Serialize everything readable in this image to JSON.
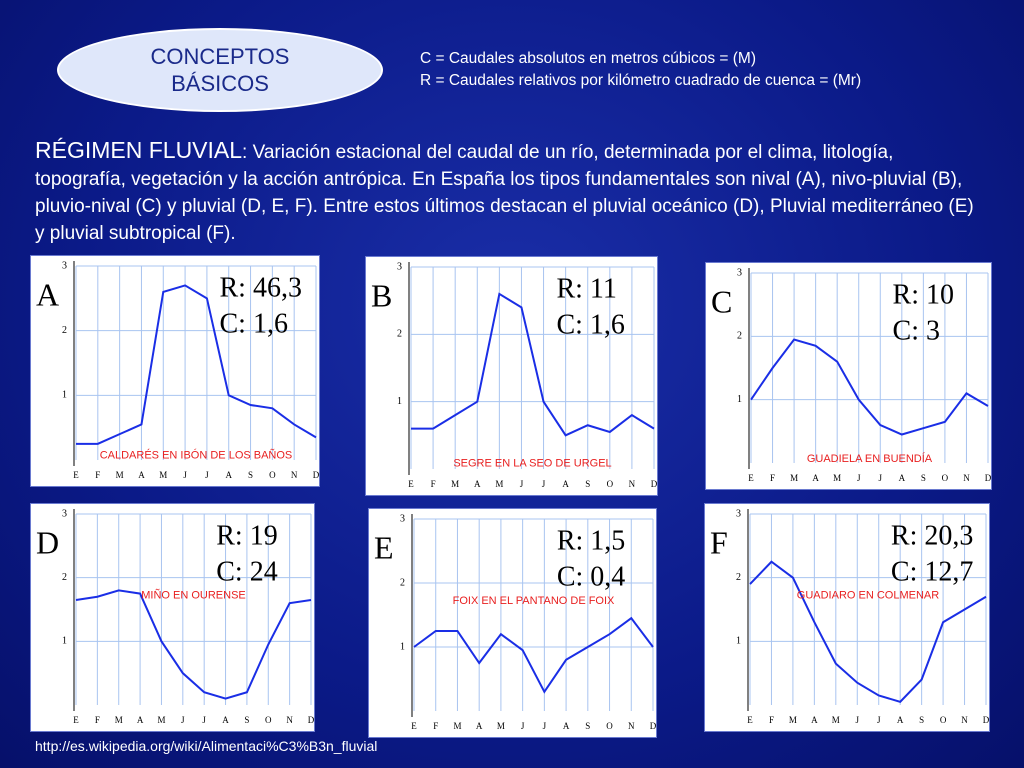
{
  "slide": {
    "title": [
      "CONCEPTOS",
      "BÁSICOS"
    ],
    "definitions": [
      "C = Caudales absolutos en metros cúbicos  = (M)",
      "R = Caudales relativos por kilómetro cuadrado de cuenca  = (Mr)"
    ],
    "term": "RÉGIMEN FLUVIAL",
    "text": ": Variación estacional del caudal de un río, determinada por el clima, litología, topografía, vegetación y la acción antrópica. En España los tipos fundamentales son nival (A), nivo-pluvial (B), pluvio-nival (C) y pluvial (D, E, F). Entre estos últimos destacan el pluvial oceánico (D), Pluvial mediterráneo (E) y pluvial subtropical (F).",
    "url": "http://es.wikipedia.org/wiki/Alimentaci%C3%B3n_fluvial"
  },
  "chart_data": [
    {
      "type": "line",
      "label": "A",
      "annotations": [
        "R: 46,3",
        "C: 1,6"
      ],
      "subtitle": "CALDARÉS EN IBÓN DE LOS BAÑOS",
      "categories": [
        "E",
        "F",
        "M",
        "A",
        "M",
        "J",
        "J",
        "A",
        "S",
        "O",
        "N",
        "D"
      ],
      "values": [
        0.25,
        0.25,
        0.4,
        0.55,
        2.6,
        2.7,
        2.5,
        1.0,
        0.85,
        0.8,
        0.55,
        0.35
      ],
      "ylim": [
        0,
        3
      ],
      "yticks": [
        1,
        2,
        3
      ],
      "color": "#1a2ee6",
      "grid": true
    },
    {
      "type": "line",
      "label": "B",
      "annotations": [
        "R: 11",
        "C: 1,6"
      ],
      "subtitle": "SEGRE EN LA SEO DE URGEL",
      "categories": [
        "E",
        "F",
        "M",
        "A",
        "M",
        "J",
        "J",
        "A",
        "S",
        "O",
        "N",
        "D"
      ],
      "values": [
        0.6,
        0.6,
        0.8,
        1.0,
        2.6,
        2.4,
        1.0,
        0.5,
        0.65,
        0.55,
        0.8,
        0.6
      ],
      "ylim": [
        0,
        3
      ],
      "yticks": [
        1,
        2,
        3
      ],
      "color": "#1a2ee6",
      "grid": true
    },
    {
      "type": "line",
      "label": "C",
      "annotations": [
        "R: 10",
        "C: 3"
      ],
      "subtitle": "GUADIELA EN BUENDÍA",
      "categories": [
        "E",
        "F",
        "M",
        "A",
        "M",
        "J",
        "J",
        "A",
        "S",
        "O",
        "N",
        "D"
      ],
      "values": [
        1.0,
        1.5,
        1.95,
        1.85,
        1.6,
        1.0,
        0.6,
        0.45,
        0.55,
        0.65,
        1.1,
        0.9
      ],
      "ylim": [
        0,
        3
      ],
      "yticks": [
        1,
        2,
        3
      ],
      "color": "#1a2ee6",
      "grid": true
    },
    {
      "type": "line",
      "label": "D",
      "annotations": [
        "R: 19",
        "C: 24"
      ],
      "subtitle": "MIÑO EN OURENSE",
      "categories": [
        "E",
        "F",
        "M",
        "A",
        "M",
        "J",
        "J",
        "A",
        "S",
        "O",
        "N",
        "D"
      ],
      "values": [
        1.65,
        1.7,
        1.8,
        1.75,
        1.0,
        0.5,
        0.2,
        0.1,
        0.2,
        0.95,
        1.6,
        1.65
      ],
      "ylim": [
        0,
        3
      ],
      "yticks": [
        1,
        2,
        3
      ],
      "color": "#1a2ee6",
      "grid": true
    },
    {
      "type": "line",
      "label": "E",
      "annotations": [
        "R: 1,5",
        "C: 0,4"
      ],
      "subtitle": "FOIX EN EL PANTANO DE FOIX",
      "categories": [
        "E",
        "F",
        "M",
        "A",
        "M",
        "J",
        "J",
        "A",
        "S",
        "O",
        "N",
        "D"
      ],
      "values": [
        1.0,
        1.25,
        1.25,
        0.75,
        1.2,
        0.95,
        0.3,
        0.8,
        1.0,
        1.2,
        1.45,
        1.0
      ],
      "ylim": [
        0,
        3
      ],
      "yticks": [
        1,
        2,
        3
      ],
      "color": "#1a2ee6",
      "grid": true
    },
    {
      "type": "line",
      "label": "F",
      "annotations": [
        "R: 20,3",
        "C: 12,7"
      ],
      "subtitle": "GUADIARO EN COLMENAR",
      "categories": [
        "E",
        "F",
        "M",
        "A",
        "M",
        "J",
        "J",
        "A",
        "S",
        "O",
        "N",
        "D"
      ],
      "values": [
        1.9,
        2.25,
        2.0,
        1.3,
        0.65,
        0.35,
        0.15,
        0.05,
        0.4,
        1.3,
        1.5,
        1.7
      ],
      "ylim": [
        0,
        3
      ],
      "yticks": [
        1,
        2,
        3
      ],
      "color": "#1a2ee6",
      "grid": true
    }
  ]
}
